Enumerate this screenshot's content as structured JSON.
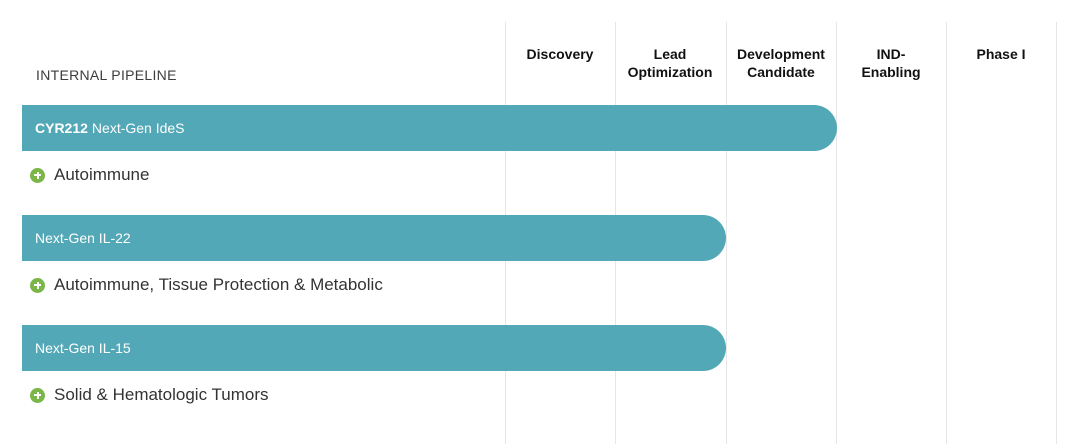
{
  "section_label": "INTERNAL PIPELINE",
  "chart_data": {
    "type": "bar",
    "orientation": "horizontal",
    "stages": [
      "Discovery",
      "Lead\nOptimization",
      "Development\nCandidate",
      "IND-\nEnabling",
      "Phase I"
    ],
    "programs": [
      {
        "code": "CYR212",
        "name": "Next-Gen IdeS",
        "indication": "Autoimmune",
        "stage_reached": "Development Candidate"
      },
      {
        "code": "",
        "name": "Next-Gen IL-22",
        "indication": "Autoimmune, Tissue Protection & Metabolic",
        "stage_reached": "Lead Optimization"
      },
      {
        "code": "",
        "name": "Next-Gen IL-15",
        "indication": "Solid & Hematologic Tumors",
        "stage_reached": "Lead Optimization"
      }
    ],
    "colors": {
      "bar": "#52a8b6",
      "indication_icon": "#7ab648"
    }
  }
}
